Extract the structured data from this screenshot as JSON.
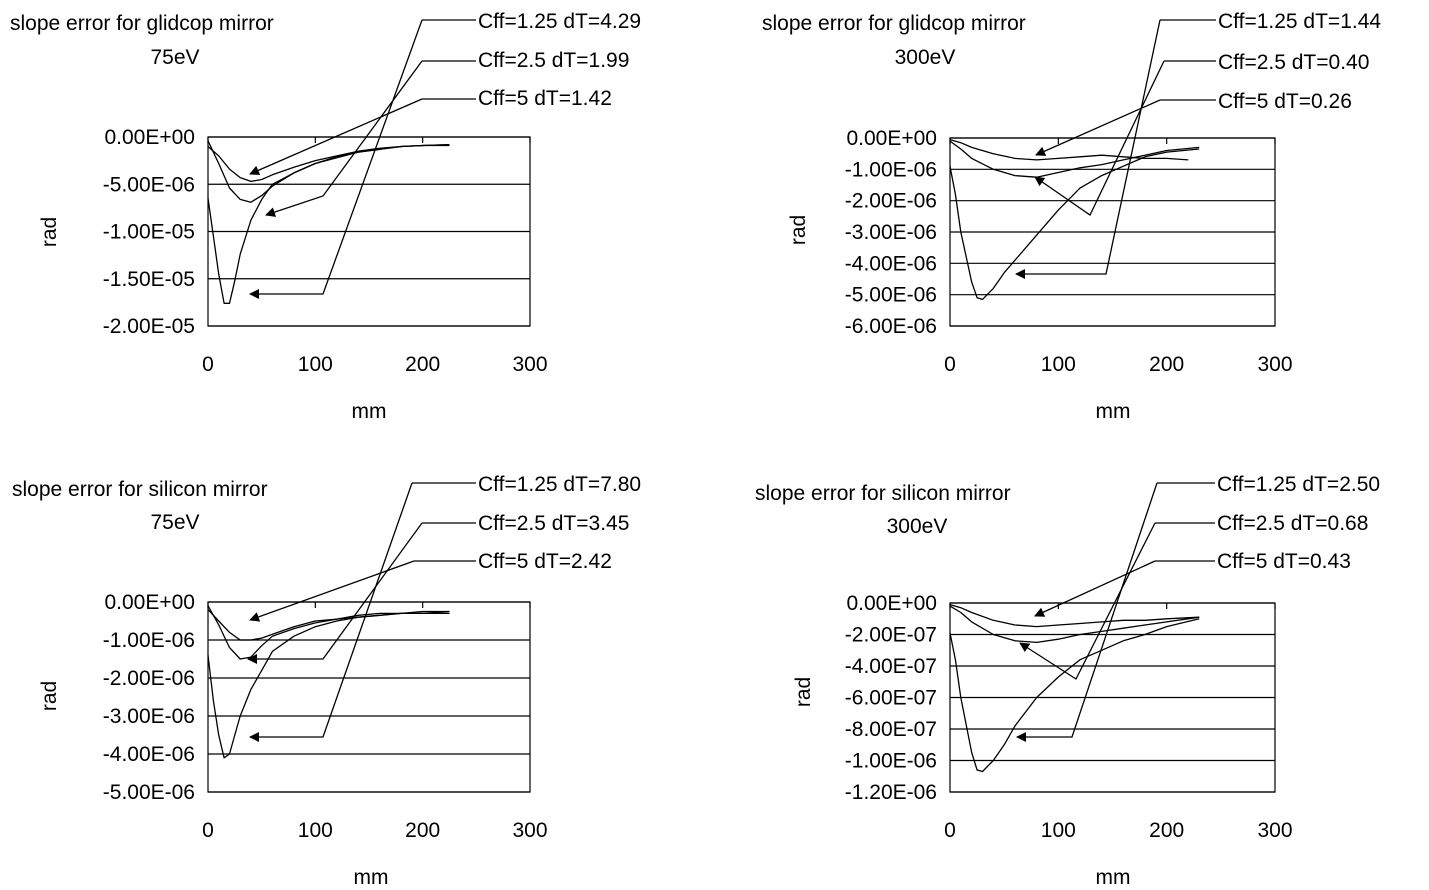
{
  "chart_data": [
    {
      "type": "line",
      "title": "slope error for glidcop mirror",
      "subtitle": "75eV",
      "xlabel": "mm",
      "ylabel": "rad",
      "xlim": [
        0,
        300
      ],
      "ylim": [
        -2e-05,
        0
      ],
      "xticks": [
        0,
        100,
        200,
        300
      ],
      "xtick_labels": [
        "0",
        "100",
        "200",
        "300"
      ],
      "yticks": [
        0,
        -5e-06,
        -1e-05,
        -1.5e-05,
        -2e-05
      ],
      "ytick_labels": [
        "0.00E+00",
        "-5.00E-06",
        "-1.00E-05",
        "-1.50E-05",
        "-2.00E-05"
      ],
      "grid": "horizontal",
      "series": [
        {
          "name": "Cff=1.25 dT=4.29",
          "x": [
            0,
            10,
            20,
            30,
            40,
            50,
            60,
            80,
            100,
            120,
            140,
            160,
            180,
            200,
            225
          ],
          "y": [
            -1e-06,
            -2e-06,
            -3.4e-06,
            -4.3e-06,
            -4.7e-06,
            -4.5e-06,
            -4e-06,
            -3.2e-06,
            -2.5e-06,
            -2e-06,
            -1.5e-06,
            -1.2e-06,
            -1e-06,
            -9e-07,
            -9e-07
          ]
        },
        {
          "name": "Cff=2.5 dT=1.99",
          "x": [
            0,
            10,
            20,
            30,
            40,
            50,
            60,
            80,
            100,
            120,
            140,
            160,
            180,
            200,
            225
          ],
          "y": [
            -4e-07,
            -2.8e-06,
            -5.4e-06,
            -6.6e-06,
            -6.9e-06,
            -6.2e-06,
            -5.2e-06,
            -3.8e-06,
            -2.8e-06,
            -2.1e-06,
            -1.6e-06,
            -1.3e-06,
            -1e-06,
            -9e-07,
            -8e-07
          ]
        },
        {
          "name": "Cff=5 dT=1.42",
          "x": [
            0,
            5,
            10,
            15,
            20,
            25,
            30,
            40,
            50,
            60,
            80,
            100,
            120,
            140,
            160,
            180,
            200,
            225
          ],
          "y": [
            -6.5e-06,
            -1.05e-05,
            -1.45e-05,
            -1.76e-05,
            -1.76e-05,
            -1.52e-05,
            -1.24e-05,
            -8.8e-06,
            -6.6e-06,
            -5e-06,
            -3.8e-06,
            -2.8e-06,
            -2.2e-06,
            -1.6e-06,
            -1.3e-06,
            -1e-06,
            -9e-07,
            -8e-07
          ]
        }
      ]
    },
    {
      "type": "line",
      "title": "slope error for glidcop mirror",
      "subtitle": "300eV",
      "xlabel": "mm",
      "ylabel": "rad",
      "xlim": [
        0,
        300
      ],
      "ylim": [
        -6e-06,
        0
      ],
      "xticks": [
        0,
        100,
        200,
        300
      ],
      "xtick_labels": [
        "0",
        "100",
        "200",
        "300"
      ],
      "yticks": [
        0,
        -1e-06,
        -2e-06,
        -3e-06,
        -4e-06,
        -5e-06,
        -6e-06
      ],
      "ytick_labels": [
        "0.00E+00",
        "-1.00E-06",
        "-2.00E-06",
        "-3.00E-06",
        "-4.00E-06",
        "-5.00E-06",
        "-6.00E-06"
      ],
      "grid": "horizontal",
      "series": [
        {
          "name": "Cff=1.25 dT=1.44",
          "x": [
            0,
            10,
            20,
            40,
            60,
            80,
            100,
            120,
            140,
            160,
            180,
            200,
            220
          ],
          "y": [
            -5e-08,
            -1.5e-07,
            -3e-07,
            -5e-07,
            -6.5e-07,
            -7e-07,
            -6.5e-07,
            -6e-07,
            -5.5e-07,
            -6e-07,
            -6.5e-07,
            -6.5e-07,
            -7e-07
          ]
        },
        {
          "name": "Cff=2.5 dT=0.40",
          "x": [
            0,
            10,
            20,
            40,
            60,
            80,
            100,
            120,
            140,
            160,
            180,
            200,
            230
          ],
          "y": [
            -1e-07,
            -3.5e-07,
            -6.5e-07,
            -1e-06,
            -1.2e-06,
            -1.25e-06,
            -1.1e-06,
            -9.5e-07,
            -8.5e-07,
            -7e-07,
            -5.5e-07,
            -4e-07,
            -3e-07
          ]
        },
        {
          "name": "Cff=5 dT=0.26",
          "x": [
            0,
            5,
            10,
            20,
            25,
            30,
            40,
            50,
            60,
            80,
            100,
            120,
            140,
            160,
            180,
            200,
            230
          ],
          "y": [
            -9e-07,
            -1.8e-06,
            -3e-06,
            -4.6e-06,
            -5.1e-06,
            -5.15e-06,
            -4.8e-06,
            -4.3e-06,
            -3.9e-06,
            -3.1e-06,
            -2.3e-06,
            -1.6e-06,
            -1.2e-06,
            -9e-07,
            -6e-07,
            -4.5e-07,
            -3.5e-07
          ]
        }
      ]
    },
    {
      "type": "line",
      "title": "slope error for silicon mirror",
      "subtitle": "75eV",
      "xlabel": "mm",
      "ylabel": "rad",
      "xlim": [
        0,
        300
      ],
      "ylim": [
        -5e-06,
        0
      ],
      "xticks": [
        0,
        100,
        200,
        300
      ],
      "xtick_labels": [
        "0",
        "100",
        "200",
        "300"
      ],
      "yticks": [
        0,
        -1e-06,
        -2e-06,
        -3e-06,
        -4e-06,
        -5e-06
      ],
      "ytick_labels": [
        "0.00E+00",
        "-1.00E-06",
        "-2.00E-06",
        "-3.00E-06",
        "-4.00E-06",
        "-5.00E-06"
      ],
      "grid": "horizontal",
      "series": [
        {
          "name": "Cff=1.25 dT=7.80",
          "x": [
            0,
            10,
            20,
            30,
            40,
            50,
            60,
            80,
            100,
            120,
            140,
            160,
            180,
            200,
            225
          ],
          "y": [
            -2e-07,
            -5e-07,
            -8e-07,
            -1e-06,
            -1e-06,
            -9.5e-07,
            -8.5e-07,
            -6.5e-07,
            -5e-07,
            -4.5e-07,
            -4e-07,
            -3.5e-07,
            -3e-07,
            -3e-07,
            -2.5e-07
          ]
        },
        {
          "name": "Cff=2.5 dT=3.45",
          "x": [
            0,
            10,
            20,
            30,
            40,
            50,
            60,
            80,
            100,
            120,
            140,
            160,
            180,
            200,
            225
          ],
          "y": [
            -1e-07,
            -6e-07,
            -1.2e-06,
            -1.5e-06,
            -1.45e-06,
            -1.15e-06,
            -9e-07,
            -7e-07,
            -5.5e-07,
            -4.5e-07,
            -3.5e-07,
            -3e-07,
            -3e-07,
            -2.5e-07,
            -2.5e-07
          ]
        },
        {
          "name": "Cff=5 dT=2.42",
          "x": [
            0,
            5,
            10,
            15,
            20,
            25,
            30,
            40,
            50,
            60,
            80,
            100,
            120,
            140,
            160,
            180,
            200,
            225
          ],
          "y": [
            -1.4e-06,
            -2.6e-06,
            -3.5e-06,
            -4.1e-06,
            -4e-06,
            -3.5e-06,
            -3e-06,
            -2.3e-06,
            -1.8e-06,
            -1.3e-06,
            -9e-07,
            -6.5e-07,
            -5e-07,
            -4e-07,
            -3.5e-07,
            -3e-07,
            -3e-07,
            -3e-07
          ]
        }
      ]
    },
    {
      "type": "line",
      "title": "slope error for silicon mirror",
      "subtitle": "300eV",
      "xlabel": "mm",
      "ylabel": "rad",
      "xlim": [
        0,
        300
      ],
      "ylim": [
        -1.2e-06,
        0
      ],
      "xticks": [
        0,
        100,
        200,
        300
      ],
      "xtick_labels": [
        "0",
        "100",
        "200",
        "300"
      ],
      "yticks": [
        0,
        -2e-07,
        -4e-07,
        -6e-07,
        -8e-07,
        -1e-06,
        -1.2e-06
      ],
      "ytick_labels": [
        "0.00E+00",
        "-2.00E-07",
        "-4.00E-07",
        "-6.00E-07",
        "-8.00E-07",
        "-1.00E-06",
        "-1.20E-06"
      ],
      "grid": "horizontal",
      "series": [
        {
          "name": "Cff=1.25 dT=2.50",
          "x": [
            0,
            10,
            20,
            40,
            60,
            80,
            100,
            120,
            140,
            160,
            180,
            200,
            230
          ],
          "y": [
            -1e-08,
            -3e-08,
            -6e-08,
            -1.1e-07,
            -1.4e-07,
            -1.5e-07,
            -1.4e-07,
            -1.3e-07,
            -1.2e-07,
            -1.1e-07,
            -1.1e-07,
            -1e-07,
            -9e-08
          ]
        },
        {
          "name": "Cff=2.5 dT=0.68",
          "x": [
            0,
            10,
            20,
            40,
            60,
            80,
            100,
            120,
            140,
            160,
            180,
            200,
            230
          ],
          "y": [
            -2e-08,
            -6e-08,
            -1.2e-07,
            -2e-07,
            -2.4e-07,
            -2.5e-07,
            -2.3e-07,
            -2e-07,
            -1.8e-07,
            -1.6e-07,
            -1.4e-07,
            -1.2e-07,
            -9e-08
          ]
        },
        {
          "name": "Cff=5 dT=0.43",
          "x": [
            0,
            5,
            10,
            20,
            25,
            30,
            40,
            50,
            60,
            80,
            100,
            120,
            140,
            160,
            180,
            200,
            230
          ],
          "y": [
            -1.9e-07,
            -3.6e-07,
            -6e-07,
            -9.5e-07,
            -1.06e-06,
            -1.07e-06,
            -1e-06,
            -9e-07,
            -7.8e-07,
            -6e-07,
            -4.7e-07,
            -3.6e-07,
            -3e-07,
            -2.4e-07,
            -2e-07,
            -1.5e-07,
            -1e-07
          ]
        }
      ]
    }
  ]
}
